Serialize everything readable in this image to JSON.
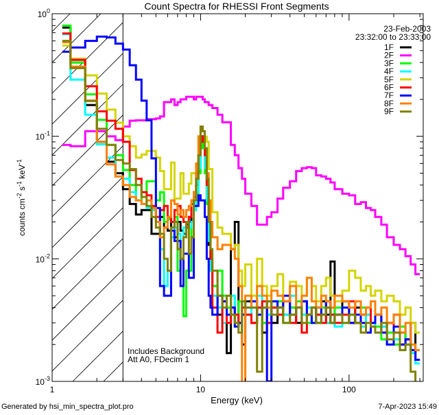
{
  "chart_data": {
    "type": "line",
    "style": "step-histogram",
    "title": "Count Spectra for RHESSI Front Segments",
    "xlabel": "Energy (keV)",
    "ylabel": {
      "base": "counts cm",
      "parts": [
        [
          "-2",
          " s"
        ],
        [
          "-1",
          " keV"
        ],
        [
          "-1",
          ""
        ]
      ]
    },
    "xscale": "log",
    "yscale": "log",
    "xlim": [
      1,
      316
    ],
    "ylim": [
      0.001,
      1
    ],
    "x_ticks": [
      {
        "value": 1,
        "label": "1"
      },
      {
        "value": 10,
        "label": "10"
      },
      {
        "value": 100,
        "label": "100"
      }
    ],
    "y_ticks": [
      {
        "value": 1,
        "base": "10",
        "exp": "0"
      },
      {
        "value": 0.1,
        "base": "10",
        "exp": "-1"
      },
      {
        "value": 0.01,
        "base": "10",
        "exp": "-2"
      },
      {
        "value": 0.001,
        "base": "10",
        "exp": "-3"
      }
    ],
    "hatched_region_keV": [
      1,
      3
    ],
    "vertical_line_keV": 3,
    "legend": {
      "placement": "top-right",
      "date": "23-Feb-2003",
      "time_range": "23:32:00 to 23:33:00"
    },
    "annotations": [
      "Includes Background",
      "Att A0, FDecim 1"
    ],
    "energy_edges": [
      1.17,
      1.33,
      1.67,
      2.0,
      2.33,
      2.67,
      3.0,
      3.33,
      3.67,
      4.0,
      4.33,
      4.67,
      5.0,
      5.33,
      5.67,
      6.0,
      6.33,
      6.67,
      7.0,
      7.33,
      7.67,
      8.0,
      8.33,
      8.67,
      9.0,
      9.33,
      9.67,
      10.0,
      10.33,
      10.67,
      11.0,
      11.33,
      11.67,
      12,
      13,
      14,
      15,
      16,
      17,
      18,
      19,
      20,
      22,
      24,
      26,
      28,
      30,
      33,
      36,
      40,
      44,
      48,
      52,
      56,
      60,
      65,
      70,
      75,
      80,
      90,
      100,
      110,
      120,
      130,
      140,
      150,
      165,
      180,
      200,
      220,
      240,
      260,
      280,
      300
    ],
    "series": [
      {
        "name": "1F",
        "color": "#000000",
        "values": [
          0.77,
          0.4,
          0.18,
          0.09,
          0.062,
          0.05,
          0.037,
          0.028,
          0.023,
          0.025,
          0.025,
          0.016,
          0.016,
          0.022,
          0.018,
          0.017,
          0.02,
          0.015,
          0.02,
          0.017,
          0.016,
          0.019,
          0.02,
          0.028,
          0.032,
          0.04,
          0.06,
          0.1,
          0.085,
          0.06,
          0.03,
          0.013,
          0.008,
          0.006,
          0.0035,
          0.0045,
          0.0017,
          0.012,
          0.02,
          0.003,
          0.002,
          0.0045,
          0.003,
          0.004,
          0.0025,
          0.0045,
          0.003,
          0.004,
          0.0035,
          0.004,
          0.003,
          0.0045,
          0.0035,
          0.004,
          0.003,
          0.0045,
          0.0035,
          0.0095,
          0.0035,
          0.0045,
          0.003,
          0.004,
          0.0035,
          0.0035,
          0.003,
          0.0035,
          0.0028,
          0.003,
          0.0035,
          0.0025,
          0.0022,
          0.003,
          0.0015
        ]
      },
      {
        "name": "2F",
        "color": "#ff00ff",
        "values": [
          0.085,
          0.083,
          0.11,
          0.11,
          0.1,
          0.093,
          0.12,
          0.134,
          0.135,
          0.135,
          0.138,
          0.138,
          0.14,
          0.145,
          0.19,
          0.19,
          0.2,
          0.18,
          0.19,
          0.2,
          0.2,
          0.21,
          0.21,
          0.21,
          0.2,
          0.21,
          0.21,
          0.21,
          0.2,
          0.19,
          0.19,
          0.18,
          0.18,
          0.17,
          0.15,
          0.13,
          0.13,
          0.085,
          0.07,
          0.055,
          0.045,
          0.034,
          0.027,
          0.019,
          0.019,
          0.022,
          0.024,
          0.031,
          0.038,
          0.043,
          0.052,
          0.055,
          0.056,
          0.055,
          0.048,
          0.047,
          0.045,
          0.042,
          0.037,
          0.034,
          0.033,
          0.028,
          0.029,
          0.026,
          0.025,
          0.022,
          0.019,
          0.015,
          0.013,
          0.012,
          0.0105,
          0.009,
          0.0075
        ]
      },
      {
        "name": "3F",
        "color": "#00ff00",
        "values": [
          0.8,
          0.4,
          0.22,
          0.136,
          0.085,
          0.07,
          0.053,
          0.04,
          0.03,
          0.035,
          0.043,
          0.043,
          0.03,
          0.035,
          0.02,
          0.021,
          0.02,
          0.022,
          0.008,
          0.01,
          0.0034,
          0.008,
          0.008,
          0.02,
          0.025,
          0.03,
          0.05,
          0.09,
          0.08,
          0.05,
          0.028,
          0.015,
          0.01,
          0.006,
          0.008,
          0.005,
          0.004,
          0.005,
          0.003,
          0.0045,
          0.004,
          0.0035,
          0.005,
          0.004,
          0.003,
          0.0035,
          0.004,
          0.0045,
          0.003,
          0.004,
          0.0045,
          0.0035,
          0.003,
          0.004,
          0.0035,
          0.004,
          0.003,
          0.0035,
          0.004,
          0.003,
          0.0035,
          0.003,
          0.004,
          0.0025,
          0.003,
          0.0028,
          0.0022,
          0.0025,
          0.002,
          0.0028,
          0.002,
          0.0018,
          0.0015
        ]
      },
      {
        "name": "4F",
        "color": "#00ffff",
        "values": [
          0.68,
          0.29,
          0.15,
          0.086,
          0.067,
          0.047,
          0.045,
          0.035,
          0.03,
          0.028,
          0.026,
          0.025,
          0.02,
          0.012,
          0.006,
          0.008,
          0.015,
          0.018,
          0.016,
          0.01,
          0.018,
          0.02,
          0.018,
          0.02,
          0.025,
          0.035,
          0.055,
          0.1,
          0.09,
          0.055,
          0.03,
          0.014,
          0.008,
          0.005,
          0.004,
          0.003,
          0.0035,
          0.005,
          0.0028,
          0.003,
          0.0045,
          0.0035,
          0.004,
          0.005,
          0.004,
          0.0035,
          0.0045,
          0.004,
          0.0035,
          0.005,
          0.004,
          0.0035,
          0.004,
          0.003,
          0.004,
          0.0035,
          0.003,
          0.0035,
          0.0028,
          0.004,
          0.0035,
          0.003,
          0.0028,
          0.0035,
          0.003,
          0.0025,
          0.0028,
          0.002,
          0.0022,
          0.0018,
          0.002,
          0.0017,
          0.0014
        ]
      },
      {
        "name": "5F",
        "color": "#d4d400",
        "values": [
          0.55,
          0.43,
          0.314,
          0.223,
          0.165,
          0.129,
          0.1,
          0.083,
          0.067,
          0.071,
          0.076,
          0.076,
          0.067,
          0.052,
          0.037,
          0.037,
          0.061,
          0.031,
          0.031,
          0.05,
          0.034,
          0.034,
          0.041,
          0.05,
          0.05,
          0.05,
          0.096,
          0.099,
          0.099,
          0.099,
          0.09,
          0.054,
          0.054,
          0.024,
          0.018,
          0.016,
          0.016,
          0.012,
          0.013,
          0.008,
          0.006,
          0.009,
          0.005,
          0.01,
          0.006,
          0.005,
          0.006,
          0.0075,
          0.005,
          0.0065,
          0.006,
          0.005,
          0.007,
          0.006,
          0.0045,
          0.006,
          0.007,
          0.005,
          0.0045,
          0.0055,
          0.008,
          0.007,
          0.0055,
          0.006,
          0.005,
          0.0055,
          0.0045,
          0.005,
          0.0045,
          0.0035,
          0.004,
          0.003,
          0.0025
        ]
      },
      {
        "name": "6F",
        "color": "#ff0000",
        "values": [
          0.69,
          0.42,
          0.256,
          0.16,
          0.134,
          0.115,
          0.09,
          0.053,
          0.045,
          0.035,
          0.033,
          0.027,
          0.022,
          0.025,
          0.027,
          0.022,
          0.02,
          0.025,
          0.027,
          0.022,
          0.02,
          0.018,
          0.022,
          0.03,
          0.035,
          0.05,
          0.07,
          0.1,
          0.09,
          0.07,
          0.04,
          0.02,
          0.01,
          0.004,
          0.0025,
          0.0045,
          0.003,
          0.004,
          0.0035,
          0.003,
          0.004,
          0.0035,
          0.003,
          0.004,
          0.0045,
          0.003,
          0.004,
          0.0035,
          0.0045,
          0.003,
          0.004,
          0.0025,
          0.0035,
          0.004,
          0.0035,
          0.003,
          0.004,
          0.0035,
          0.003,
          0.0035,
          0.0045,
          0.003,
          0.0035,
          0.004,
          0.003,
          0.0035,
          0.0025,
          0.003,
          0.0025,
          0.002,
          0.0022,
          0.0018,
          0.0015
        ]
      },
      {
        "name": "7F",
        "color": "#0000ff",
        "values": [
          0.49,
          0.53,
          0.6,
          0.65,
          0.64,
          0.57,
          0.51,
          0.38,
          0.29,
          0.195,
          0.135,
          0.066,
          0.026,
          0.006,
          0.005,
          0.005,
          0.017,
          0.014,
          0.014,
          0.006,
          0.011,
          0.011,
          0.007,
          0.007,
          0.027,
          0.027,
          0.033,
          0.03,
          0.03,
          0.022,
          0.01,
          0.005,
          0.004,
          0.0035,
          0.005,
          0.0045,
          0.0035,
          0.004,
          0.0028,
          0.003,
          0.0035,
          0.004,
          0.0045,
          0.0035,
          0.004,
          0.001,
          0.0045,
          0.004,
          0.005,
          0.0035,
          0.004,
          0.0045,
          0.0035,
          0.003,
          0.004,
          0.0035,
          0.0045,
          0.003,
          0.0035,
          0.004,
          0.003,
          0.0035,
          0.003,
          0.0025,
          0.003,
          0.0035,
          0.0025,
          0.002,
          0.0028,
          0.002,
          0.0022,
          0.0018,
          0.0015
        ]
      },
      {
        "name": "8F",
        "color": "#ff8000",
        "values": [
          0.585,
          0.37,
          0.196,
          0.09,
          0.059,
          0.047,
          0.04,
          0.032,
          0.03,
          0.028,
          0.03,
          0.026,
          0.02,
          0.015,
          0.018,
          0.022,
          0.03,
          0.028,
          0.023,
          0.025,
          0.022,
          0.025,
          0.027,
          0.03,
          0.035,
          0.06,
          0.1,
          0.12,
          0.11,
          0.08,
          0.05,
          0.03,
          0.02,
          0.015,
          0.012,
          0.013,
          0.013,
          0.012,
          0.01,
          0.006,
          0.0009,
          0.005,
          0.004,
          0.006,
          0.005,
          0.004,
          0.0055,
          0.005,
          0.0045,
          0.006,
          0.004,
          0.005,
          0.007,
          0.0045,
          0.004,
          0.005,
          0.0045,
          0.004,
          0.005,
          0.0045,
          0.004,
          0.0045,
          0.0035,
          0.004,
          0.0045,
          0.0035,
          0.004,
          0.003,
          0.0035,
          0.0025,
          0.003,
          0.002,
          0.0018
        ]
      },
      {
        "name": "9F",
        "color": "#808000",
        "values": [
          0.6,
          0.36,
          0.194,
          0.115,
          0.085,
          0.064,
          0.06,
          0.054,
          0.04,
          0.032,
          0.027,
          0.022,
          0.018,
          0.016,
          0.01,
          0.008,
          0.018,
          0.02,
          0.012,
          0.01,
          0.015,
          0.02,
          0.011,
          0.015,
          0.03,
          0.045,
          0.07,
          0.12,
          0.11,
          0.08,
          0.045,
          0.02,
          0.012,
          0.008,
          0.005,
          0.004,
          0.005,
          0.0035,
          0.003,
          0.0025,
          0.0045,
          0.004,
          0.004,
          0.0012,
          0.004,
          0.0045,
          0.0035,
          0.004,
          0.003,
          0.0035,
          0.004,
          0.003,
          0.0035,
          0.004,
          0.003,
          0.0035,
          0.004,
          0.003,
          0.0035,
          0.003,
          0.0035,
          0.003,
          0.0025,
          0.003,
          0.0028,
          0.0025,
          0.003,
          0.0022,
          0.0025,
          0.0018,
          0.002,
          0.0012,
          0.0009
        ]
      }
    ]
  },
  "footer": {
    "generated_by": "Generated by hsi_min_spectra_plot.pro",
    "timestamp": "7-Apr-2023 15:49"
  }
}
